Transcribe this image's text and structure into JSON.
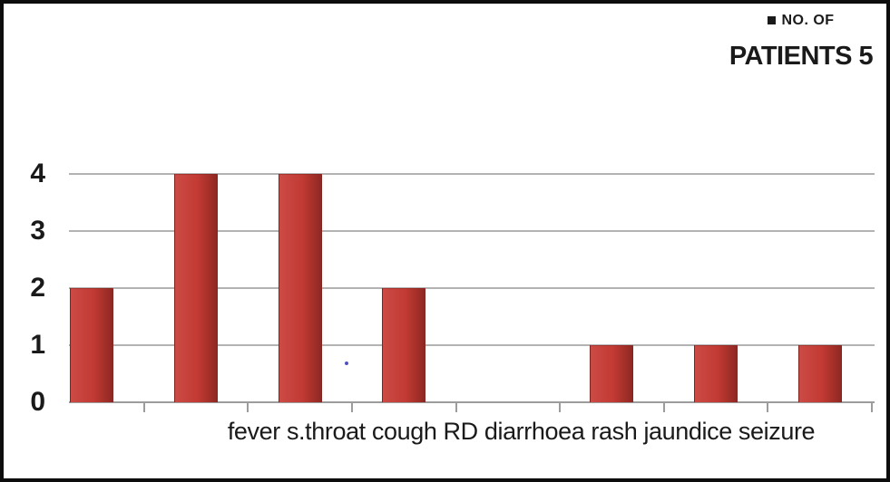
{
  "frame": {
    "background": "#ffffff",
    "border_color": "#0d0d0d"
  },
  "legend": {
    "marker_icon": "square-bullet-icon",
    "marker_color": "#1a1a1a",
    "line1": "NO. OF",
    "line2": "PATIENTS 5",
    "position": "top-right"
  },
  "x_axis": {
    "label_line": "fever s.throat cough RD diarrhoea rash jaundice seizure"
  },
  "chart_data": {
    "type": "bar",
    "title": "",
    "categories": [
      "fever",
      "s.throat",
      "cough",
      "RD",
      "diarrhoea",
      "rash",
      "jaundice",
      "seizure"
    ],
    "values": [
      2,
      4,
      4,
      2,
      0,
      1,
      1,
      1
    ],
    "series": [
      {
        "name": "NO. OF PATIENTS 5",
        "values": [
          2,
          4,
          4,
          2,
          0,
          1,
          1,
          1
        ]
      }
    ],
    "xlabel": "",
    "ylabel": "",
    "ylim": [
      0,
      4
    ],
    "y_ticks": [
      0,
      1,
      2,
      3,
      4
    ],
    "grid": "horizontal",
    "legend_position": "top-right",
    "bar_color_start": "#cc4b45",
    "bar_color_mid": "#c23a33",
    "bar_color_end": "#8f2823",
    "gridline_color": "#b3b3b3",
    "baseline_color": "#9c9c9c",
    "tick_color": "#9c9c9c"
  },
  "artifacts": {
    "stray_dot_color": "#5252be"
  }
}
